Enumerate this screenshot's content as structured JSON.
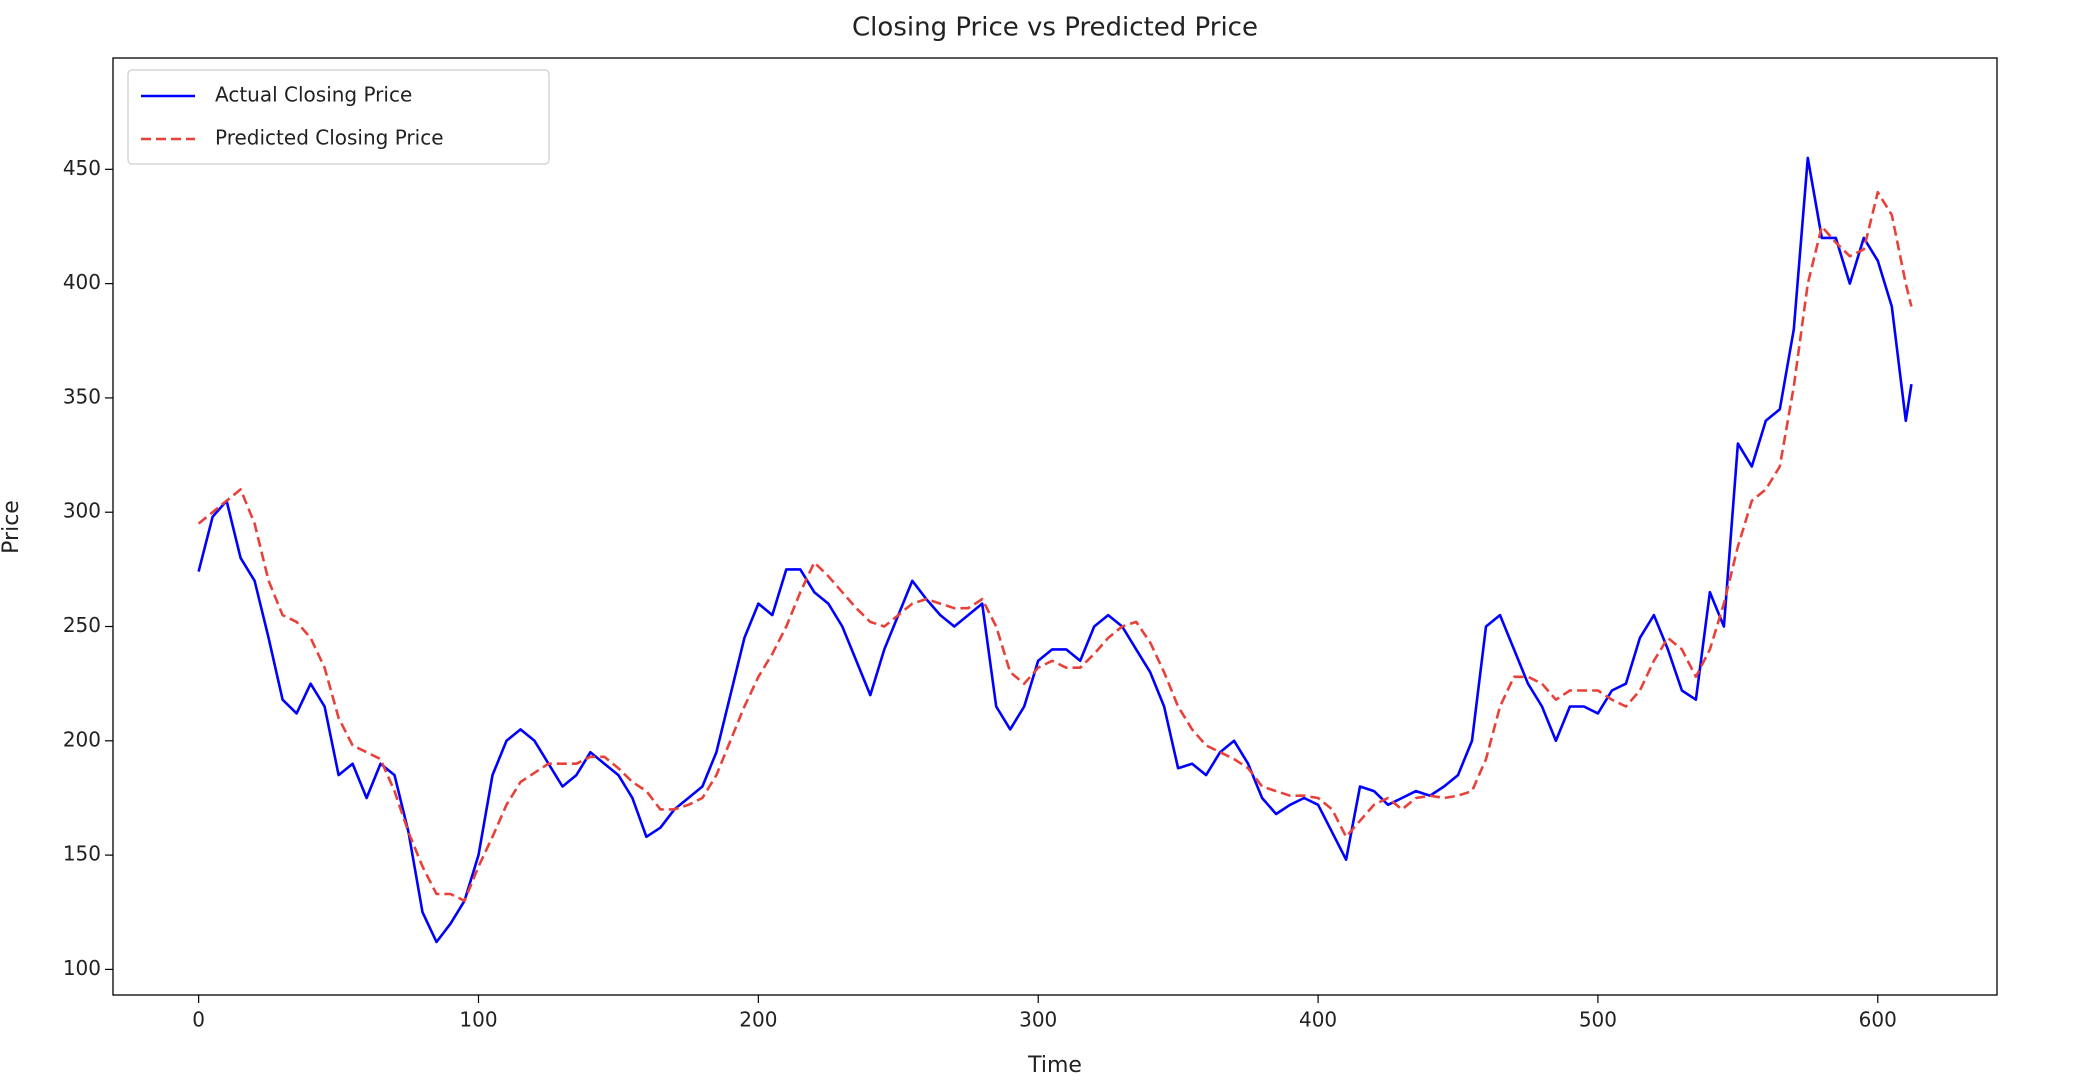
{
  "chart_data": {
    "type": "line",
    "title": "Closing Price vs Predicted Price",
    "x_label": "Time",
    "y_label": "Price",
    "x": [
      0,
      5,
      10,
      15,
      20,
      25,
      30,
      35,
      40,
      45,
      50,
      55,
      60,
      65,
      70,
      75,
      80,
      85,
      90,
      95,
      100,
      105,
      110,
      115,
      120,
      125,
      130,
      135,
      140,
      145,
      150,
      155,
      160,
      165,
      170,
      175,
      180,
      185,
      190,
      195,
      200,
      205,
      210,
      215,
      220,
      225,
      230,
      235,
      240,
      245,
      250,
      255,
      260,
      265,
      270,
      275,
      280,
      285,
      290,
      295,
      300,
      305,
      310,
      315,
      320,
      325,
      330,
      335,
      340,
      345,
      350,
      355,
      360,
      365,
      370,
      375,
      380,
      385,
      390,
      395,
      400,
      405,
      410,
      415,
      420,
      425,
      430,
      435,
      440,
      445,
      450,
      455,
      460,
      465,
      470,
      475,
      480,
      485,
      490,
      495,
      500,
      505,
      510,
      515,
      520,
      525,
      530,
      535,
      540,
      545,
      550,
      555,
      560,
      565,
      570,
      575,
      580,
      585,
      590,
      595,
      600,
      605,
      610,
      612
    ],
    "series": [
      {
        "name": "Actual Closing Price",
        "color": "#0000ff",
        "dashed": false,
        "values": [
          274,
          298,
          305,
          280,
          270,
          245,
          218,
          212,
          225,
          215,
          185,
          190,
          175,
          190,
          185,
          160,
          125,
          112,
          120,
          130,
          150,
          185,
          200,
          205,
          200,
          190,
          180,
          185,
          195,
          190,
          185,
          175,
          158,
          162,
          170,
          175,
          180,
          195,
          220,
          245,
          260,
          255,
          275,
          275,
          265,
          260,
          250,
          235,
          220,
          240,
          255,
          270,
          262,
          255,
          250,
          255,
          260,
          215,
          205,
          215,
          235,
          240,
          240,
          235,
          250,
          255,
          250,
          240,
          230,
          215,
          188,
          190,
          185,
          195,
          200,
          190,
          175,
          168,
          172,
          175,
          172,
          160,
          148,
          180,
          178,
          172,
          175,
          178,
          176,
          180,
          185,
          200,
          250,
          255,
          240,
          225,
          215,
          200,
          215,
          215,
          212,
          222,
          225,
          245,
          255,
          240,
          222,
          218,
          265,
          250,
          330,
          320,
          340,
          345,
          380,
          455,
          420,
          420,
          400,
          420,
          410,
          390,
          340,
          356
        ]
      },
      {
        "name": "Predicted Closing Price",
        "color": "#e8413a",
        "dashed": true,
        "values": [
          295,
          300,
          305,
          310,
          295,
          270,
          255,
          252,
          245,
          232,
          210,
          198,
          195,
          192,
          178,
          160,
          145,
          133,
          133,
          130,
          145,
          158,
          172,
          182,
          186,
          190,
          190,
          190,
          193,
          193,
          188,
          182,
          178,
          170,
          170,
          172,
          175,
          185,
          200,
          215,
          228,
          238,
          250,
          265,
          278,
          272,
          265,
          258,
          252,
          250,
          255,
          260,
          262,
          260,
          258,
          258,
          262,
          250,
          230,
          225,
          232,
          235,
          232,
          232,
          238,
          245,
          250,
          252,
          243,
          230,
          215,
          205,
          198,
          195,
          192,
          188,
          180,
          178,
          176,
          176,
          175,
          170,
          158,
          165,
          172,
          175,
          170,
          175,
          176,
          175,
          176,
          178,
          192,
          215,
          228,
          228,
          225,
          218,
          222,
          222,
          222,
          218,
          215,
          222,
          235,
          245,
          240,
          228,
          240,
          260,
          285,
          305,
          310,
          320,
          355,
          400,
          425,
          418,
          412,
          415,
          440,
          430,
          400,
          390
        ]
      }
    ],
    "xlim": [
      -30.6,
      642.6
    ],
    "ylim": [
      88.8,
      498.7
    ],
    "xticks": [
      0,
      100,
      200,
      300,
      400,
      500,
      600
    ],
    "yticks": [
      100,
      150,
      200,
      250,
      300,
      350,
      400,
      450
    ],
    "grid": false,
    "legend": "upper left"
  }
}
